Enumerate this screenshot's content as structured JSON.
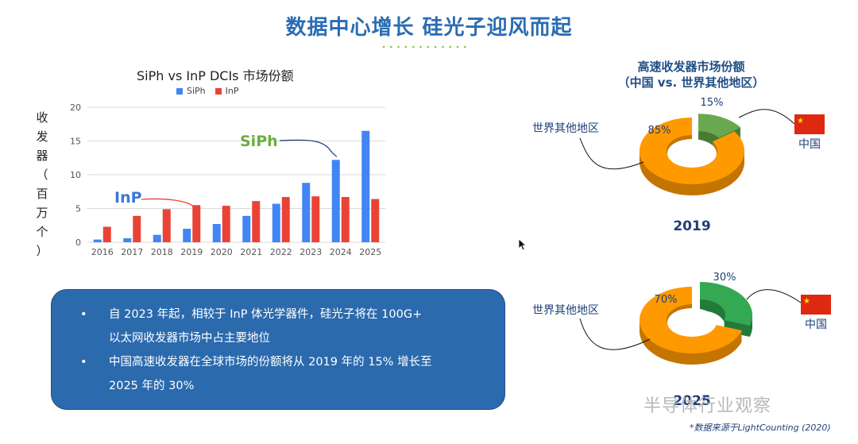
{
  "page": {
    "title": "数据中心增长 硅光子迎风而起",
    "watermark": "半导体行业观察",
    "source": "*数据来源于LightCounting (2020)"
  },
  "bar_chart": {
    "title": "SiPh vs InP DCIs 市场份额",
    "ylabel": "收发器（百万个）",
    "annotation_siph": "SiPh",
    "annotation_inp": "InP"
  },
  "donut_chart": {
    "title_line1": "高速收发器市场份额",
    "title_line2": "（中国 vs. 世界其他地区）",
    "rest_label": "世界其他地区",
    "china_label": "中国"
  },
  "info": {
    "bullet_symbol": "•",
    "line1": "自 2023 年起，相较于 InP 体光学器件，硅光子将在 100G+",
    "line2": "以太网收发器市场中占主要地位",
    "line3": "中国高速收发器在全球市场的份额将从 2019 年的 15% 增长至",
    "line4": "2025 年的 30%"
  },
  "chart_data": [
    {
      "type": "bar",
      "title": "SiPh vs InP DCIs 市场份额",
      "xlabel": "",
      "ylabel": "收发器（百万个）",
      "categories": [
        "2016",
        "2017",
        "2018",
        "2019",
        "2020",
        "2021",
        "2022",
        "2023",
        "2024",
        "2025"
      ],
      "series": [
        {
          "name": "SiPh",
          "color": "#4285f4",
          "values": [
            0.4,
            0.6,
            1.1,
            2.0,
            2.7,
            3.9,
            5.7,
            8.8,
            12.2,
            16.5
          ]
        },
        {
          "name": "InP",
          "color": "#ea4335",
          "values": [
            2.3,
            3.9,
            4.9,
            5.5,
            5.4,
            6.1,
            6.7,
            6.8,
            6.7,
            6.4
          ]
        }
      ],
      "ylim": [
        0,
        20
      ],
      "yticks": [
        0,
        5,
        10,
        15,
        20
      ],
      "grid": true,
      "legend": "top"
    },
    {
      "type": "pie",
      "title": "2019",
      "labels": [
        "中国",
        "世界其他地区"
      ],
      "values": [
        15,
        85
      ],
      "value_labels": [
        "15%",
        "85%"
      ],
      "colors": [
        "#6aa84f",
        "#ff9900"
      ]
    },
    {
      "type": "pie",
      "title": "2025",
      "labels": [
        "中国",
        "世界其他地区"
      ],
      "values": [
        30,
        70
      ],
      "value_labels": [
        "30%",
        "70%"
      ],
      "colors": [
        "#34a853",
        "#ff9900"
      ]
    }
  ]
}
